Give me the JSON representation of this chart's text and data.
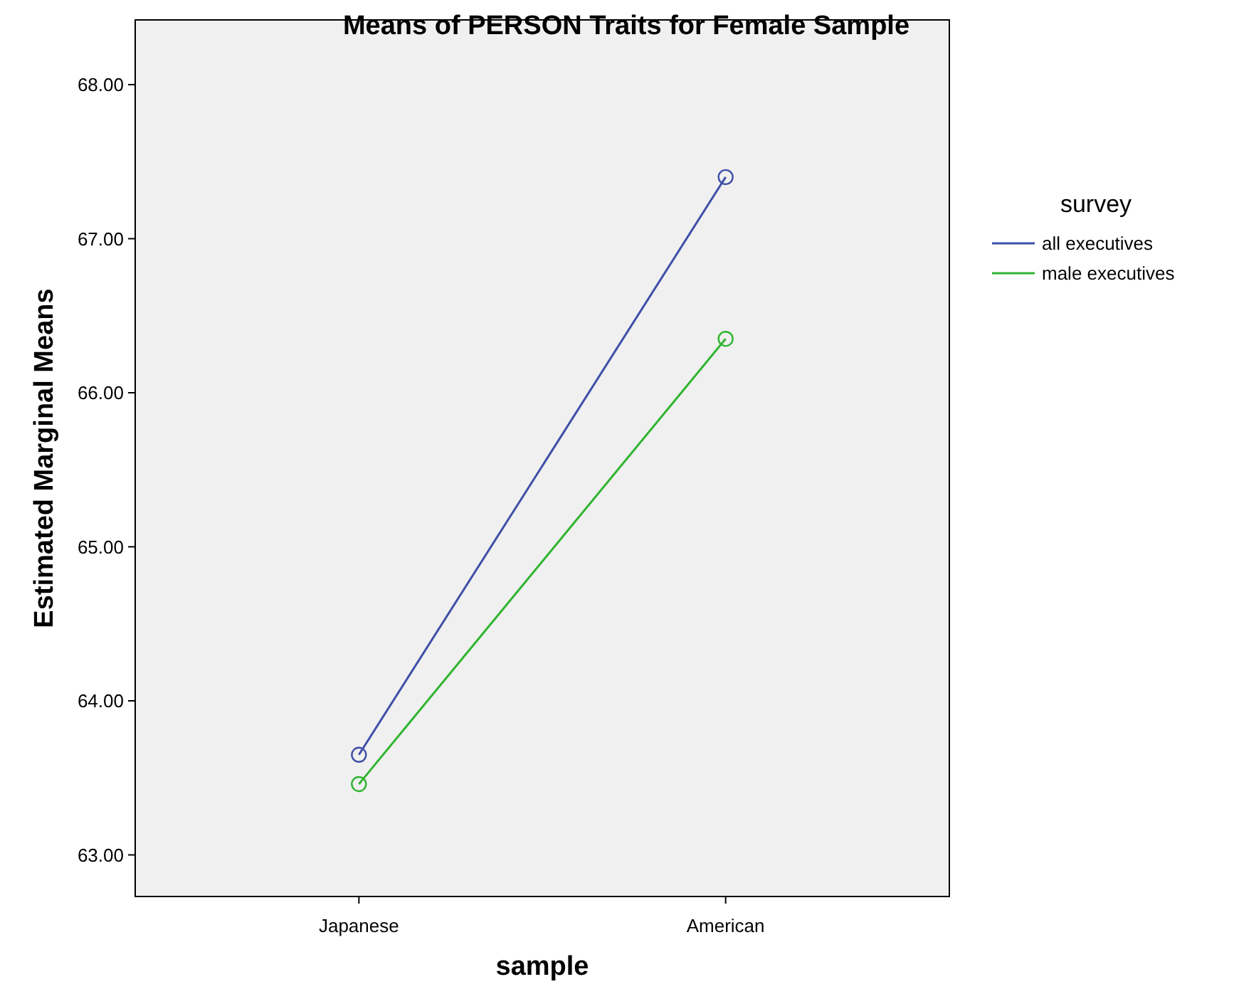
{
  "chart_data": {
    "type": "line",
    "title": "Means of PERSON Traits for Female Sample",
    "xlabel": "sample",
    "ylabel": "Estimated Marginal Means",
    "legend_title": "survey",
    "categories": [
      "Japanese",
      "American"
    ],
    "series": [
      {
        "name": "all executives",
        "color": "#3f4fa8",
        "values": [
          63.65,
          67.4
        ]
      },
      {
        "name": "male executives",
        "color": "#2fb42f",
        "values": [
          63.46,
          66.35
        ]
      }
    ],
    "ylim": [
      62.73,
      68.42
    ],
    "yticks": [
      {
        "value": 63,
        "label": "63.00"
      },
      {
        "value": 64,
        "label": "64.00"
      },
      {
        "value": 65,
        "label": "65.00"
      },
      {
        "value": 66,
        "label": "66.00"
      },
      {
        "value": 67,
        "label": "67.00"
      },
      {
        "value": 68,
        "label": "68.00"
      }
    ],
    "grid": false,
    "legend": "right",
    "marker": "circle",
    "line_style": "solid"
  }
}
